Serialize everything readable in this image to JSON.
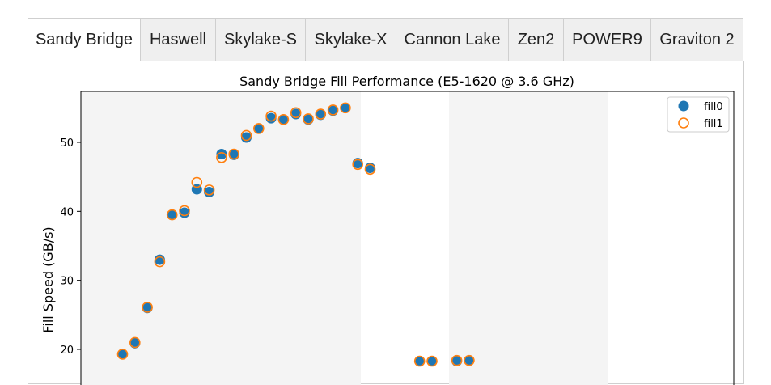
{
  "tabs": [
    {
      "label": "Sandy Bridge",
      "active": true
    },
    {
      "label": "Haswell"
    },
    {
      "label": "Skylake-S"
    },
    {
      "label": "Skylake-X"
    },
    {
      "label": "Cannon Lake"
    },
    {
      "label": "Zen2"
    },
    {
      "label": "POWER9"
    },
    {
      "label": "Graviton 2"
    }
  ],
  "chart_data": {
    "type": "scatter",
    "title": "Sandy Bridge Fill Performance (E5-1620 @ 3.6 GHz)",
    "ylabel": "Fill Speed (GB/s)",
    "xlabel": "",
    "ylim": [
      17,
      57
    ],
    "yticks": [
      20,
      30,
      40,
      50
    ],
    "legend_placement": "top-right",
    "colors": {
      "fill0": "#1f77b4",
      "fill1": "#ff7f0e",
      "shade": "#f4f4f4"
    },
    "series": [
      {
        "name": "fill0",
        "marker": "filled-circle",
        "x": [
          1,
          2,
          3,
          4,
          5,
          6,
          7,
          8,
          9,
          10,
          11,
          12,
          13,
          14,
          15,
          16,
          17,
          18,
          19,
          20,
          21,
          25,
          26,
          28,
          29
        ],
        "y": [
          19.3,
          20.9,
          26.0,
          33.0,
          39.5,
          39.8,
          43.2,
          42.8,
          48.3,
          48.2,
          50.7,
          52.0,
          53.5,
          53.3,
          54.1,
          53.3,
          54.0,
          54.6,
          55.0,
          47.0,
          46.3,
          18.3,
          18.3,
          18.3,
          18.4
        ]
      },
      {
        "name": "fill1",
        "marker": "open-circle",
        "x": [
          1,
          2,
          3,
          4,
          5,
          6,
          7,
          8,
          9,
          10,
          11,
          12,
          13,
          14,
          15,
          16,
          17,
          18,
          19,
          20,
          21,
          25,
          26,
          28,
          29
        ],
        "y": [
          19.3,
          21.0,
          26.1,
          32.7,
          39.5,
          40.1,
          44.2,
          43.1,
          47.8,
          48.3,
          51.0,
          52.0,
          53.8,
          53.3,
          54.3,
          53.4,
          54.1,
          54.7,
          55.0,
          46.8,
          46.1,
          18.3,
          18.3,
          18.4,
          18.4
        ]
      }
    ]
  }
}
